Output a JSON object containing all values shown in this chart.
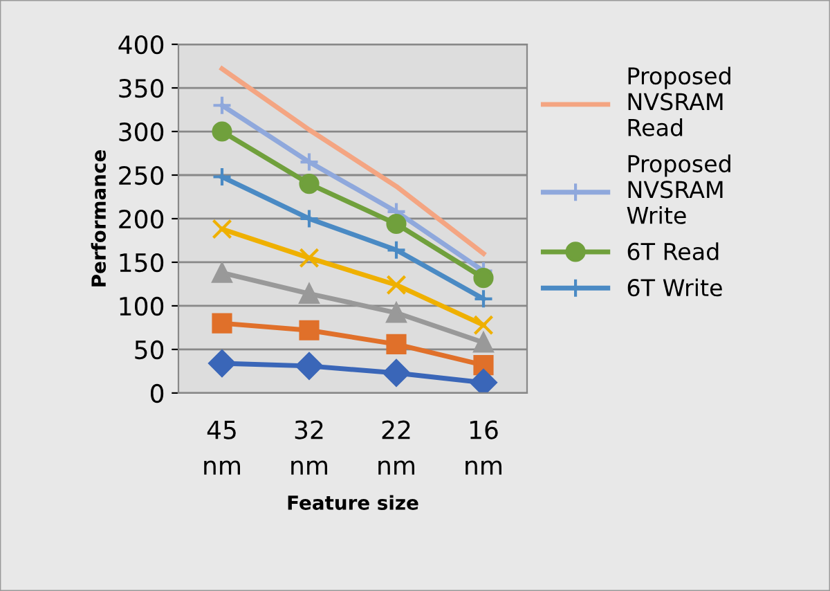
{
  "chart_data": {
    "type": "line",
    "xlabel": "Feature size",
    "ylabel": "Performance",
    "categories": [
      "45 nm",
      "32 nm",
      "22 nm",
      "16 nm"
    ],
    "series": [
      {
        "name": "Proposed NVSRAM Read",
        "color": "#f4a582",
        "marker": "none",
        "values": [
          372,
          302,
          237,
          160
        ]
      },
      {
        "name": "Proposed NVSRAM Write",
        "color": "#8fa8dc",
        "marker": "cross",
        "values": [
          330,
          265,
          208,
          140
        ]
      },
      {
        "name": "6T Read",
        "color": "#70a03c",
        "marker": "circle",
        "values": [
          300,
          240,
          194,
          132
        ]
      },
      {
        "name": "6T Write",
        "color": "#4a8ac4",
        "marker": "cross",
        "values": [
          248,
          200,
          164,
          108
        ]
      },
      {
        "color": "#efb000",
        "marker": "x",
        "values": [
          188,
          155,
          124,
          78
        ]
      },
      {
        "color": "#999999",
        "marker": "triangle",
        "values": [
          138,
          114,
          92,
          58
        ]
      },
      {
        "color": "#e0702a",
        "marker": "square",
        "values": [
          80,
          72,
          56,
          32
        ]
      },
      {
        "color": "#3a66b8",
        "marker": "diamond",
        "values": [
          34,
          31,
          23,
          12
        ]
      }
    ],
    "ylim": [
      0,
      400
    ],
    "yticks": [
      0,
      50,
      100,
      150,
      200,
      250,
      300,
      350,
      400
    ],
    "grid": "y",
    "legend": "right"
  }
}
